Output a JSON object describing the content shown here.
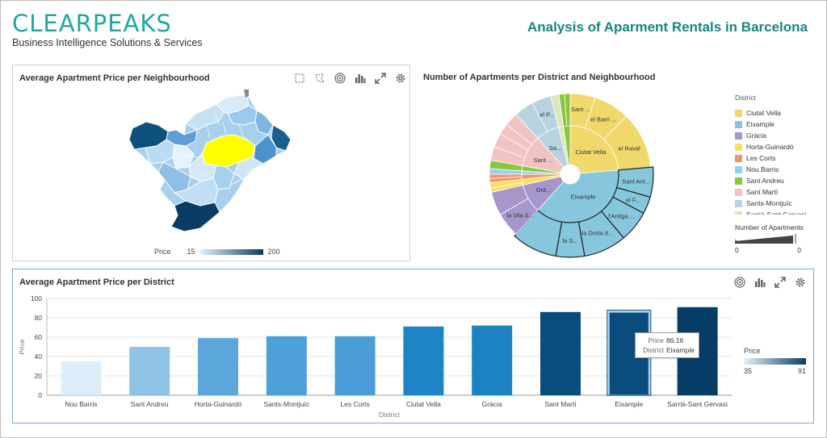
{
  "header": {
    "logo_word": "CLEARPEAKS",
    "logo_tagline": "Business Intelligence Solutions & Services",
    "title": "Analysis of Aparment Rentals in Barcelona"
  },
  "map_panel": {
    "title": "Average Apartment Price per Neighbourhood",
    "toolbar": [
      "rect-select-icon",
      "lasso-select-icon",
      "target-icon",
      "bar-chart-icon",
      "expand-icon",
      "gear-icon"
    ],
    "legend": {
      "label": "Price",
      "min": "15",
      "max": "200"
    }
  },
  "sunburst_panel": {
    "title": "Number of Apartments per District and Neighbourhood",
    "segment_labels": {
      "ciutat_vella": "Ciutat Vella",
      "eixample": "Eixample",
      "gracia": "Grà...",
      "sants": "Sa...",
      "sant_marti": "Sant ...",
      "sant_ant": "Sant Ant...",
      "el_f": "el F...",
      "antiga": "l'Antiga ...",
      "dreta": "la Dreta d...",
      "la_s": "la S...",
      "vila": "la Vila d...",
      "raval": "el Raval",
      "barri": "el Barri ...",
      "sant_pere": "Sant ...",
      "el_p": "el P..."
    },
    "legend_title": "District",
    "districts": [
      {
        "name": "Ciutat Vella",
        "color": "#f0d96a"
      },
      {
        "name": "Eixample",
        "color": "#86c7de"
      },
      {
        "name": "Gràcia",
        "color": "#a696cb"
      },
      {
        "name": "Horta-Guinardó",
        "color": "#f7e25d"
      },
      {
        "name": "Les Corts",
        "color": "#f4926b"
      },
      {
        "name": "Nou Barris",
        "color": "#8fd5f0"
      },
      {
        "name": "Sant Andreu",
        "color": "#8cc63f"
      },
      {
        "name": "Sant Martí",
        "color": "#f1c3c3"
      },
      {
        "name": "Sants-Montjuïc",
        "color": "#b8d2e0"
      },
      {
        "name": "Sarrià-Sant Gervasi",
        "color": "#dbe8b8"
      }
    ],
    "size_legend": {
      "title": "Number of Apartments",
      "min": "0",
      "max": "0"
    }
  },
  "bar_panel": {
    "title": "Average Apartment Price per District",
    "toolbar": [
      "target-icon",
      "bar-chart-icon",
      "expand-icon",
      "gear-icon"
    ],
    "legend": {
      "label": "Price",
      "min": "35",
      "max": "91"
    },
    "tooltip": {
      "k1": "Price",
      "v1": "86.16",
      "k2": "District",
      "v2": "Eixample"
    }
  },
  "chart_data": {
    "type": "bar",
    "title": "Average Apartment Price per District",
    "xlabel": "District",
    "ylabel": "Price",
    "ylim": [
      0,
      100
    ],
    "yticks": [
      0,
      20,
      40,
      60,
      80,
      100
    ],
    "categories": [
      "Nou Barris",
      "Sant Andreu",
      "Horta-Guinardó",
      "Sants-Montjuïc",
      "Les Corts",
      "Ciutat Vella",
      "Gràcia",
      "Sant Martí",
      "Eixample",
      "Sarrià-Sant Gervasi"
    ],
    "values": [
      35,
      50,
      59,
      61,
      61,
      71,
      72,
      86,
      86.16,
      91
    ],
    "colors": [
      "#ddeefa",
      "#8fc3e8",
      "#5ba7dc",
      "#4d9fd8",
      "#4a9dd6",
      "#1f84c6",
      "#1c82c4",
      "#0a4c7e",
      "#0a4c7e",
      "#063d66"
    ],
    "grid": true,
    "highlighted": "Eixample"
  }
}
